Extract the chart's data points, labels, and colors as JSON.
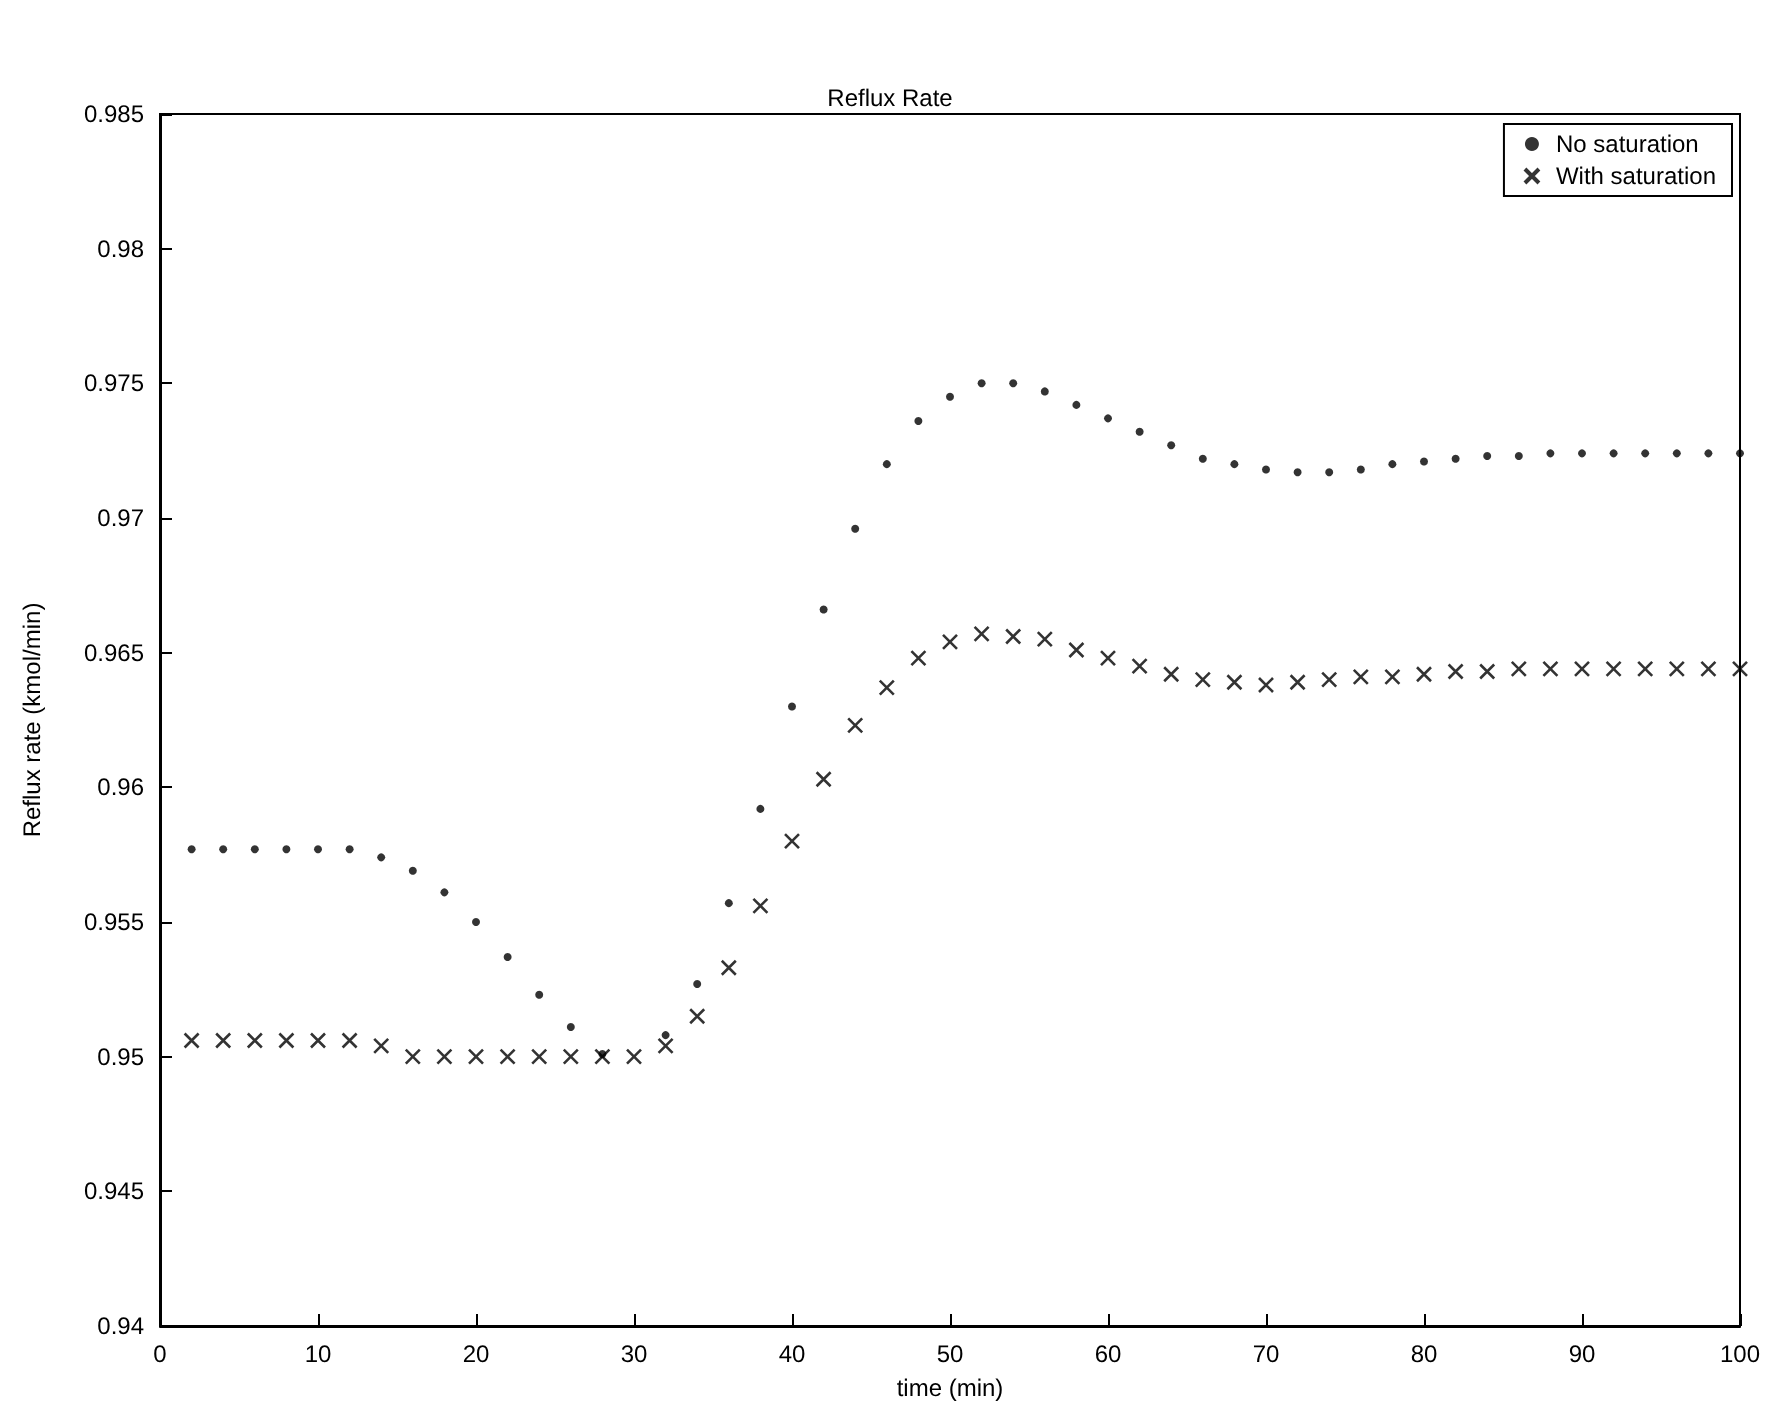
{
  "chart_data": {
    "type": "scatter",
    "title": "Reflux Rate",
    "xlabel": "time (min)",
    "ylabel": "Reflux rate (kmol/min)",
    "x": [
      2,
      4,
      6,
      8,
      10,
      12,
      14,
      16,
      18,
      20,
      22,
      24,
      26,
      28,
      30,
      32,
      34,
      36,
      38,
      40,
      42,
      44,
      46,
      48,
      50,
      52,
      54,
      56,
      58,
      60,
      62,
      64,
      66,
      68,
      70,
      72,
      74,
      76,
      78,
      80,
      82,
      84,
      86,
      88,
      90,
      92,
      94,
      96,
      98,
      100
    ],
    "series": [
      {
        "name": "No saturation",
        "color": "#000000",
        "marker": "circle",
        "values": [
          0.9577,
          0.9577,
          0.9577,
          0.9577,
          0.9577,
          0.9577,
          0.9574,
          0.9569,
          0.9561,
          0.955,
          0.9537,
          0.9523,
          0.9511,
          0.9501,
          null,
          0.9508,
          0.9527,
          0.9557,
          0.9592,
          0.963,
          0.9666,
          0.9696,
          0.972,
          0.9736,
          0.9745,
          0.975,
          0.975,
          0.9747,
          0.9742,
          0.9737,
          0.9732,
          0.9727,
          0.9722,
          0.972,
          0.9718,
          0.9717,
          0.9717,
          0.9718,
          0.972,
          0.9721,
          0.9722,
          0.9723,
          0.9723,
          0.9724,
          0.9724,
          0.9724,
          0.9724,
          0.9724,
          0.9724,
          0.9724
        ]
      },
      {
        "name": "With saturation",
        "color": "#000000",
        "marker": "cross",
        "values": [
          0.9506,
          0.9506,
          0.9506,
          0.9506,
          0.9506,
          0.9506,
          0.9504,
          0.95,
          0.95,
          0.95,
          0.95,
          0.95,
          0.95,
          0.95,
          0.95,
          0.9504,
          0.9515,
          0.9533,
          0.9556,
          0.958,
          0.9603,
          0.9623,
          0.9637,
          0.9648,
          0.9654,
          0.9657,
          0.9656,
          0.9655,
          0.9651,
          0.9648,
          0.9645,
          0.9642,
          0.964,
          0.9639,
          0.9638,
          0.9639,
          0.964,
          0.9641,
          0.9641,
          0.9642,
          0.9643,
          0.9643,
          0.9644,
          0.9644,
          0.9644,
          0.9644,
          0.9644,
          0.9644,
          0.9644,
          0.9644
        ]
      }
    ],
    "xlim": [
      0,
      100
    ],
    "xticks": [
      0,
      10,
      20,
      30,
      40,
      50,
      60,
      70,
      80,
      90,
      100
    ],
    "ylim": [
      0.94,
      0.985
    ],
    "yticks": [
      0.94,
      0.945,
      0.95,
      0.955,
      0.96,
      0.965,
      0.97,
      0.975,
      0.98,
      0.985
    ],
    "grid": false,
    "legend": "top right"
  }
}
